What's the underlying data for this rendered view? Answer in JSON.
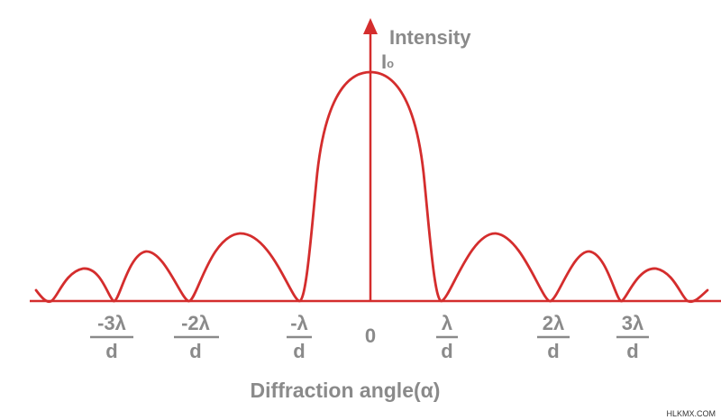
{
  "diagram": {
    "y_axis_label": "Intensity",
    "peak_label": {
      "main": "I",
      "sub": "o"
    },
    "x_axis_label": "Diffraction angle(α)",
    "origin_label": "0",
    "tick_labels": [
      {
        "num": "-3λ",
        "den": "d"
      },
      {
        "num": "-2λ",
        "den": "d"
      },
      {
        "num": "-λ",
        "den": "d"
      },
      {
        "num": "λ",
        "den": "d"
      },
      {
        "num": "2λ",
        "den": "d"
      },
      {
        "num": "3λ",
        "den": "d"
      }
    ],
    "colors": {
      "curve": "#d42d2d",
      "axis": "#d42d2d",
      "label": "#8a8a8a"
    }
  },
  "watermark": "HLKMX.COM"
}
